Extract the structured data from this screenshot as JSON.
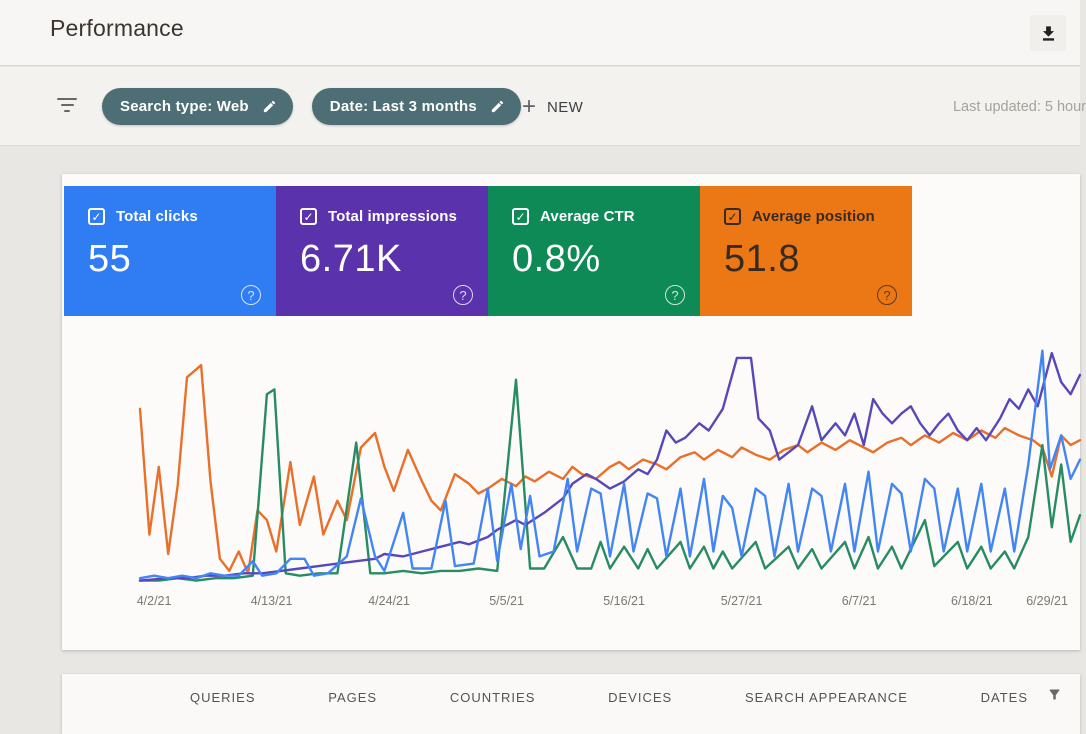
{
  "header": {
    "title": "Performance"
  },
  "filter_bar": {
    "chips": [
      {
        "id": "search-type",
        "label": "Search type: Web"
      },
      {
        "id": "date-range",
        "label": "Date: Last 3 months"
      }
    ],
    "plus": "+",
    "new_label": "NEW",
    "last_updated": "Last updated: 5 hour",
    "chip_color": "#4d6e74"
  },
  "metric_cards": [
    {
      "id": "total-clicks",
      "label": "Total clicks",
      "value": "55",
      "checked": true,
      "color": "#2f7cf3",
      "text_color": "#ffffff"
    },
    {
      "id": "total-impressions",
      "label": "Total impressions",
      "value": "6.71K",
      "checked": true,
      "color": "#5a32ab",
      "text_color": "#ffffff"
    },
    {
      "id": "average-ctr",
      "label": "Average CTR",
      "value": "0.8%",
      "checked": true,
      "color": "#0d8a55",
      "text_color": "#ffffff"
    },
    {
      "id": "average-position",
      "label": "Average position",
      "value": "51.8",
      "checked": true,
      "color": "#eb7815",
      "text_color": "#382b1e"
    }
  ],
  "chart_data": {
    "type": "line",
    "title": "",
    "xlabel": "",
    "ylabel": "",
    "grid": false,
    "legend_position": "none",
    "x_range": [
      "4/2/21",
      "6/29/21"
    ],
    "x_ticks": [
      {
        "label": "4/2/21",
        "pos": 1.5
      },
      {
        "label": "4/13/21",
        "pos": 14
      },
      {
        "label": "4/24/21",
        "pos": 26.5
      },
      {
        "label": "5/5/21",
        "pos": 39
      },
      {
        "label": "5/16/21",
        "pos": 51.5
      },
      {
        "label": "5/27/21",
        "pos": 64
      },
      {
        "label": "6/7/21",
        "pos": 76.5
      },
      {
        "label": "6/18/21",
        "pos": 88.5
      },
      {
        "label": "6/29/21",
        "pos": 96.5
      }
    ],
    "y_unit": "percent-of-plot-height",
    "series": [
      {
        "id": "average-position",
        "name": "Average position",
        "color": "#e8702a",
        "points": [
          [
            0,
            72
          ],
          [
            1,
            20
          ],
          [
            2,
            48
          ],
          [
            3,
            12
          ],
          [
            4,
            40
          ],
          [
            5,
            85
          ],
          [
            6.5,
            90
          ],
          [
            7.5,
            42
          ],
          [
            8.5,
            10
          ],
          [
            9.5,
            5
          ],
          [
            10.5,
            13
          ],
          [
            11.5,
            4
          ],
          [
            12.5,
            30
          ],
          [
            13.5,
            26
          ],
          [
            14.5,
            13
          ],
          [
            16,
            50
          ],
          [
            17,
            24
          ],
          [
            18.5,
            44
          ],
          [
            19.5,
            20
          ],
          [
            21,
            34
          ],
          [
            22,
            26
          ],
          [
            23.5,
            56
          ],
          [
            25,
            62
          ],
          [
            26,
            48
          ],
          [
            27,
            38
          ],
          [
            28.5,
            55
          ],
          [
            30,
            42
          ],
          [
            31,
            34
          ],
          [
            32,
            30
          ],
          [
            33.5,
            45
          ],
          [
            35,
            41
          ],
          [
            36,
            37
          ],
          [
            37,
            39
          ],
          [
            38.5,
            43
          ],
          [
            40,
            40
          ],
          [
            41,
            44
          ],
          [
            42,
            42
          ],
          [
            43.5,
            46
          ],
          [
            45,
            43
          ],
          [
            46,
            48
          ],
          [
            47,
            45
          ],
          [
            48.5,
            43
          ],
          [
            50,
            48
          ],
          [
            51,
            50
          ],
          [
            52,
            47
          ],
          [
            53.5,
            51
          ],
          [
            55,
            49
          ],
          [
            56,
            47
          ],
          [
            57.5,
            52
          ],
          [
            59,
            54
          ],
          [
            60,
            51
          ],
          [
            61.5,
            55
          ],
          [
            63,
            52
          ],
          [
            64,
            56
          ],
          [
            65.5,
            53
          ],
          [
            67,
            51
          ],
          [
            68.5,
            55
          ],
          [
            70,
            57
          ],
          [
            71,
            54
          ],
          [
            72.5,
            58
          ],
          [
            74,
            55
          ],
          [
            75.5,
            59
          ],
          [
            77,
            56
          ],
          [
            78,
            54
          ],
          [
            79.5,
            58
          ],
          [
            81,
            60
          ],
          [
            82,
            57
          ],
          [
            83.5,
            61
          ],
          [
            85,
            58
          ],
          [
            86.5,
            62
          ],
          [
            88,
            59
          ],
          [
            89.5,
            63
          ],
          [
            91,
            60
          ],
          [
            92,
            64
          ],
          [
            93.5,
            61
          ],
          [
            95,
            59
          ],
          [
            96,
            56
          ],
          [
            97,
            44
          ],
          [
            98,
            61
          ],
          [
            99,
            57
          ],
          [
            100,
            59
          ]
        ]
      },
      {
        "id": "average-ctr",
        "name": "Average CTR",
        "color": "#288c62",
        "points": [
          [
            0,
            1
          ],
          [
            2,
            1
          ],
          [
            4,
            2
          ],
          [
            6,
            1
          ],
          [
            8,
            2
          ],
          [
            10,
            2
          ],
          [
            12,
            3
          ],
          [
            13.5,
            78
          ],
          [
            14.3,
            80
          ],
          [
            15.5,
            4
          ],
          [
            17,
            3
          ],
          [
            19,
            4
          ],
          [
            21,
            4
          ],
          [
            23,
            58
          ],
          [
            24.5,
            4
          ],
          [
            26,
            4
          ],
          [
            28,
            5
          ],
          [
            30,
            4
          ],
          [
            32,
            5
          ],
          [
            34,
            5
          ],
          [
            36,
            6
          ],
          [
            38,
            5
          ],
          [
            40,
            84
          ],
          [
            41.5,
            6
          ],
          [
            43,
            6
          ],
          [
            45,
            19
          ],
          [
            46.5,
            6
          ],
          [
            48,
            6
          ],
          [
            49,
            17
          ],
          [
            50,
            6
          ],
          [
            51.5,
            15
          ],
          [
            53,
            6
          ],
          [
            54,
            14
          ],
          [
            55,
            6
          ],
          [
            57.5,
            17
          ],
          [
            58.5,
            6
          ],
          [
            60,
            15
          ],
          [
            61,
            6
          ],
          [
            62,
            13
          ],
          [
            63,
            6
          ],
          [
            65.5,
            17
          ],
          [
            66.5,
            6
          ],
          [
            69,
            15
          ],
          [
            70,
            6
          ],
          [
            71.5,
            14
          ],
          [
            72.5,
            6
          ],
          [
            75,
            17
          ],
          [
            76,
            6
          ],
          [
            77.5,
            19
          ],
          [
            78.5,
            6
          ],
          [
            80,
            15
          ],
          [
            81,
            6
          ],
          [
            83.5,
            26
          ],
          [
            84.5,
            7
          ],
          [
            87,
            17
          ],
          [
            88,
            6
          ],
          [
            89.5,
            15
          ],
          [
            90.5,
            6
          ],
          [
            92,
            13
          ],
          [
            93,
            6
          ],
          [
            94.5,
            19
          ],
          [
            96,
            57
          ],
          [
            97,
            23
          ],
          [
            98,
            49
          ],
          [
            99,
            17
          ],
          [
            100,
            28
          ]
        ]
      },
      {
        "id": "total-impressions",
        "name": "Total impressions",
        "color": "#5748b8",
        "points": [
          [
            0,
            1
          ],
          [
            3,
            2
          ],
          [
            5,
            2
          ],
          [
            7,
            3
          ],
          [
            9,
            3
          ],
          [
            11,
            4
          ],
          [
            13,
            4
          ],
          [
            15,
            5
          ],
          [
            17,
            6
          ],
          [
            19,
            7
          ],
          [
            21,
            8
          ],
          [
            23,
            9
          ],
          [
            25,
            10
          ],
          [
            26,
            12
          ],
          [
            28,
            11
          ],
          [
            30,
            13
          ],
          [
            32,
            15
          ],
          [
            34,
            17
          ],
          [
            35,
            16
          ],
          [
            37,
            19
          ],
          [
            38,
            22
          ],
          [
            40,
            26
          ],
          [
            41,
            24
          ],
          [
            43,
            29
          ],
          [
            45,
            35
          ],
          [
            46,
            41
          ],
          [
            47.5,
            45
          ],
          [
            48.5,
            43
          ],
          [
            50,
            39
          ],
          [
            51.5,
            42
          ],
          [
            53,
            47
          ],
          [
            54,
            45
          ],
          [
            55,
            51
          ],
          [
            56,
            63
          ],
          [
            57,
            58
          ],
          [
            58,
            60
          ],
          [
            59.5,
            66
          ],
          [
            60.5,
            63
          ],
          [
            62,
            72
          ],
          [
            63.5,
            93
          ],
          [
            65,
            93
          ],
          [
            65.8,
            68
          ],
          [
            67,
            63
          ],
          [
            68,
            51
          ],
          [
            70,
            57
          ],
          [
            71.5,
            73
          ],
          [
            72.5,
            59
          ],
          [
            74,
            66
          ],
          [
            75,
            61
          ],
          [
            76,
            70
          ],
          [
            77,
            57
          ],
          [
            78,
            76
          ],
          [
            79,
            70
          ],
          [
            80,
            66
          ],
          [
            81,
            70
          ],
          [
            82,
            73
          ],
          [
            83,
            66
          ],
          [
            84,
            61
          ],
          [
            85,
            66
          ],
          [
            86,
            70
          ],
          [
            87,
            63
          ],
          [
            88,
            59
          ],
          [
            89,
            64
          ],
          [
            90,
            59
          ],
          [
            91.5,
            68
          ],
          [
            92.5,
            76
          ],
          [
            93.5,
            72
          ],
          [
            94.5,
            80
          ],
          [
            95.5,
            73
          ],
          [
            97,
            95
          ],
          [
            98,
            83
          ],
          [
            99,
            78
          ],
          [
            100,
            86
          ]
        ]
      },
      {
        "id": "total-clicks",
        "name": "Total clicks",
        "color": "#4285f4",
        "points": [
          [
            0,
            2
          ],
          [
            1.5,
            3
          ],
          [
            3,
            2
          ],
          [
            4.5,
            3
          ],
          [
            6,
            2
          ],
          [
            7.5,
            4
          ],
          [
            9,
            3
          ],
          [
            10.5,
            3
          ],
          [
            12,
            9
          ],
          [
            13,
            3
          ],
          [
            14.5,
            4
          ],
          [
            16,
            10
          ],
          [
            17.5,
            10
          ],
          [
            18.5,
            3
          ],
          [
            20,
            4
          ],
          [
            22,
            11
          ],
          [
            23.5,
            35
          ],
          [
            25,
            11
          ],
          [
            26,
            5
          ],
          [
            28,
            29
          ],
          [
            29,
            6
          ],
          [
            31,
            6
          ],
          [
            32.5,
            34
          ],
          [
            33.5,
            7
          ],
          [
            35.5,
            8
          ],
          [
            37,
            39
          ],
          [
            38,
            9
          ],
          [
            39.5,
            41
          ],
          [
            40.5,
            14
          ],
          [
            41.5,
            36
          ],
          [
            42.5,
            11
          ],
          [
            44,
            13
          ],
          [
            45.5,
            43
          ],
          [
            46.5,
            13
          ],
          [
            48,
            39
          ],
          [
            49,
            37
          ],
          [
            50,
            11
          ],
          [
            51.5,
            41
          ],
          [
            52.5,
            13
          ],
          [
            54,
            37
          ],
          [
            55,
            35
          ],
          [
            56,
            11
          ],
          [
            57.5,
            39
          ],
          [
            58.5,
            11
          ],
          [
            60,
            43
          ],
          [
            61,
            13
          ],
          [
            62,
            36
          ],
          [
            63,
            31
          ],
          [
            64,
            11
          ],
          [
            65.5,
            39
          ],
          [
            66.5,
            36
          ],
          [
            67.5,
            11
          ],
          [
            69,
            41
          ],
          [
            70,
            13
          ],
          [
            71.5,
            39
          ],
          [
            72.5,
            36
          ],
          [
            73.5,
            13
          ],
          [
            75,
            41
          ],
          [
            76,
            13
          ],
          [
            77.5,
            46
          ],
          [
            78.5,
            13
          ],
          [
            80,
            41
          ],
          [
            81,
            37
          ],
          [
            82,
            13
          ],
          [
            83.5,
            43
          ],
          [
            84.5,
            39
          ],
          [
            85.5,
            13
          ],
          [
            87,
            39
          ],
          [
            88,
            13
          ],
          [
            89.5,
            41
          ],
          [
            90.5,
            13
          ],
          [
            92,
            39
          ],
          [
            93,
            13
          ],
          [
            94.5,
            49
          ],
          [
            96,
            96
          ],
          [
            96.8,
            47
          ],
          [
            98,
            61
          ],
          [
            99,
            43
          ],
          [
            100,
            51
          ]
        ]
      }
    ]
  },
  "tabs": [
    "QUERIES",
    "PAGES",
    "COUNTRIES",
    "DEVICES",
    "SEARCH APPEARANCE",
    "DATES"
  ],
  "icons": {
    "download": "download-icon",
    "filter_list": "filter-list-icon",
    "edit": "edit-icon",
    "help": "help-icon",
    "checkbox": "checkbox-icon",
    "funnel": "filter-funnel-icon"
  }
}
